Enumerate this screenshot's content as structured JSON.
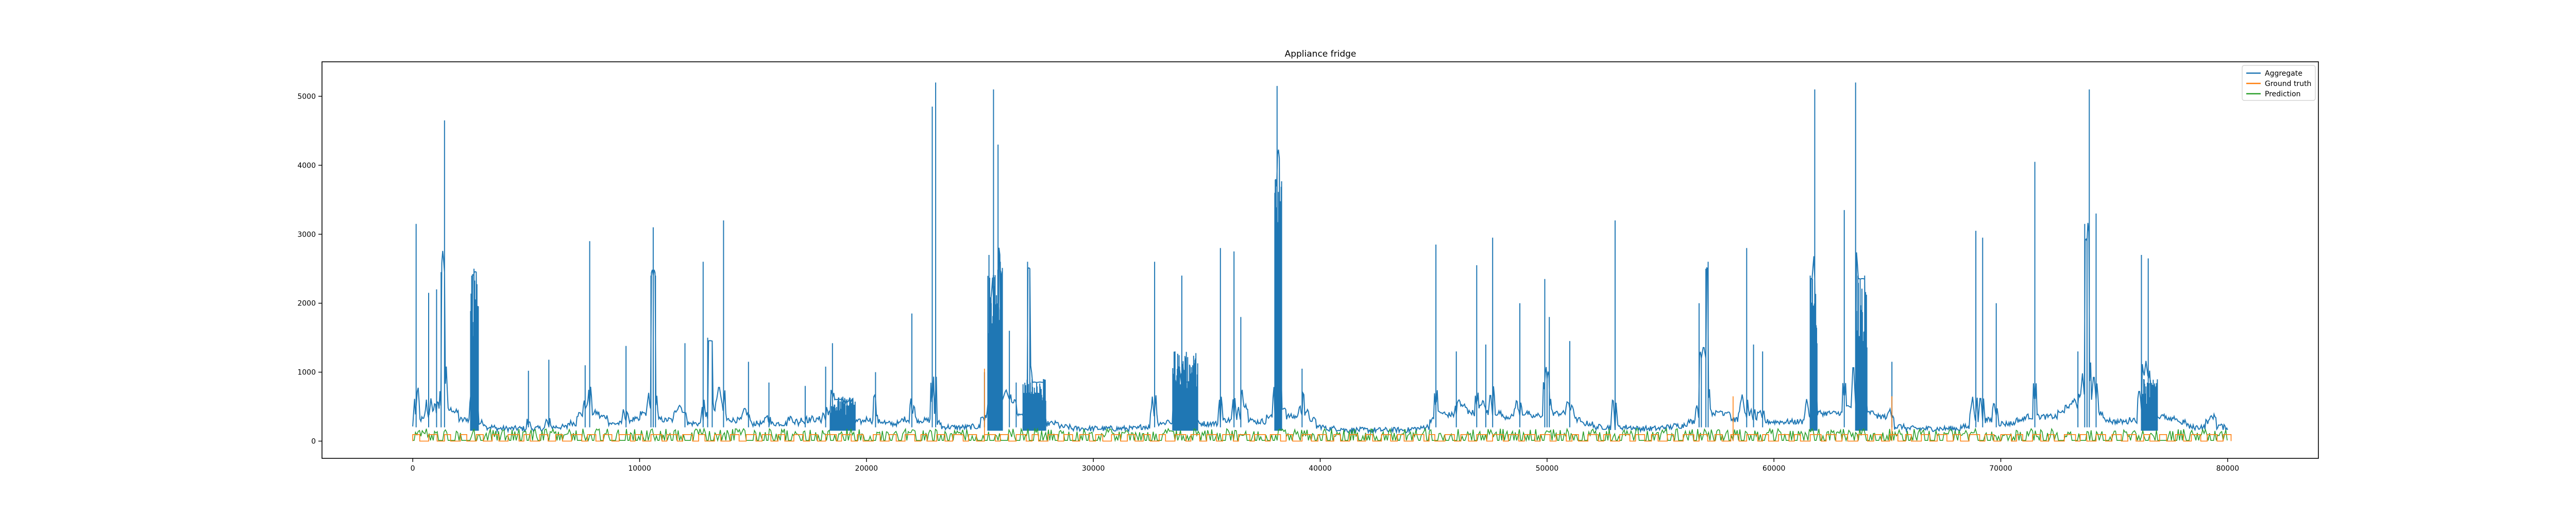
{
  "chart_data": {
    "type": "line",
    "title": "Appliance fridge",
    "xlabel": "",
    "ylabel": "",
    "xlim": [
      -4000,
      84000
    ],
    "ylim": [
      -250,
      5500
    ],
    "xticks": [
      0,
      10000,
      20000,
      30000,
      40000,
      50000,
      60000,
      70000,
      80000
    ],
    "yticks": [
      0,
      1000,
      2000,
      3000,
      4000,
      5000
    ],
    "grid": false,
    "legend_position": "top-right",
    "series": [
      {
        "name": "Aggregate",
        "color": "#1f77b4",
        "baseline": 180,
        "points": [
          [
            0,
            200
          ],
          [
            150,
            3150
          ],
          [
            300,
            450
          ],
          [
            500,
            300
          ],
          [
            700,
            2150
          ],
          [
            900,
            350
          ],
          [
            1050,
            2200
          ],
          [
            1150,
            420
          ],
          [
            1250,
            2450
          ],
          [
            1400,
            4650
          ],
          [
            1550,
            500
          ],
          [
            1800,
            450
          ],
          [
            2000,
            420
          ],
          [
            2200,
            300
          ],
          [
            2500,
            450
          ],
          [
            2600,
            2400
          ],
          [
            2700,
            2500
          ],
          [
            2800,
            2450
          ],
          [
            2900,
            400
          ],
          [
            3200,
            250
          ],
          [
            3600,
            200
          ],
          [
            4200,
            180
          ],
          [
            5000,
            200
          ],
          [
            5100,
            1020
          ],
          [
            5200,
            200
          ],
          [
            5800,
            180
          ],
          [
            6000,
            1180
          ],
          [
            6100,
            200
          ],
          [
            6800,
            250
          ],
          [
            7200,
            380
          ],
          [
            7500,
            480
          ],
          [
            7600,
            1100
          ],
          [
            7700,
            450
          ],
          [
            7800,
            2900
          ],
          [
            7900,
            500
          ],
          [
            8200,
            400
          ],
          [
            8600,
            350
          ],
          [
            8800,
            250
          ],
          [
            9200,
            300
          ],
          [
            9400,
            1380
          ],
          [
            9500,
            300
          ],
          [
            10000,
            420
          ],
          [
            10300,
            400
          ],
          [
            10500,
            2400
          ],
          [
            10600,
            3100
          ],
          [
            10700,
            2400
          ],
          [
            10800,
            420
          ],
          [
            11100,
            300
          ],
          [
            11500,
            380
          ],
          [
            12000,
            1420
          ],
          [
            12100,
            300
          ],
          [
            12700,
            250
          ],
          [
            12800,
            2600
          ],
          [
            12900,
            300
          ],
          [
            13000,
            1500
          ],
          [
            13200,
            1450
          ],
          [
            13300,
            400
          ],
          [
            13700,
            3200
          ],
          [
            13800,
            400
          ],
          [
            14200,
            300
          ],
          [
            14500,
            350
          ],
          [
            14800,
            1150
          ],
          [
            14900,
            250
          ],
          [
            15500,
            300
          ],
          [
            15700,
            850
          ],
          [
            15800,
            250
          ],
          [
            16500,
            300
          ],
          [
            16800,
            600
          ],
          [
            17000,
            250
          ],
          [
            17300,
            800
          ],
          [
            17400,
            300
          ],
          [
            17800,
            500
          ],
          [
            18000,
            300
          ],
          [
            18200,
            1080
          ],
          [
            18300,
            400
          ],
          [
            18400,
            650
          ],
          [
            18500,
            1420
          ],
          [
            18600,
            600
          ],
          [
            18700,
            650
          ],
          [
            18900,
            600
          ],
          [
            19200,
            580
          ],
          [
            19400,
            600
          ],
          [
            19500,
            300
          ],
          [
            19800,
            280
          ],
          [
            20300,
            620
          ],
          [
            20400,
            1000
          ],
          [
            20500,
            300
          ],
          [
            20800,
            280
          ],
          [
            21200,
            250
          ],
          [
            21500,
            300
          ],
          [
            21900,
            450
          ],
          [
            22000,
            1850
          ],
          [
            22200,
            300
          ],
          [
            22800,
            300
          ],
          [
            22900,
            4850
          ],
          [
            23000,
            400
          ],
          [
            23050,
            5200
          ],
          [
            23100,
            350
          ],
          [
            23300,
            250
          ],
          [
            23800,
            200
          ],
          [
            24500,
            200
          ],
          [
            25000,
            280
          ],
          [
            25200,
            1000
          ],
          [
            25300,
            300
          ],
          [
            25400,
            2700
          ],
          [
            25500,
            2000
          ],
          [
            25600,
            5100
          ],
          [
            25700,
            500
          ],
          [
            25800,
            4300
          ],
          [
            25900,
            2600
          ],
          [
            26000,
            600
          ],
          [
            26300,
            1600
          ],
          [
            26400,
            550
          ],
          [
            26600,
            850
          ],
          [
            26800,
            350
          ],
          [
            26900,
            400
          ],
          [
            27100,
            2600
          ],
          [
            27200,
            2500
          ],
          [
            27300,
            900
          ],
          [
            27500,
            850
          ],
          [
            27800,
            900
          ],
          [
            27900,
            300
          ],
          [
            28500,
            250
          ],
          [
            29000,
            200
          ],
          [
            29800,
            180
          ],
          [
            30500,
            200
          ],
          [
            31000,
            180
          ],
          [
            32000,
            200
          ],
          [
            32500,
            300
          ],
          [
            32700,
            2600
          ],
          [
            32800,
            400
          ],
          [
            33100,
            250
          ],
          [
            33500,
            600
          ],
          [
            33600,
            1300
          ],
          [
            33700,
            800
          ],
          [
            33900,
            2400
          ],
          [
            34000,
            900
          ],
          [
            34300,
            850
          ],
          [
            34500,
            850
          ],
          [
            34600,
            300
          ],
          [
            35000,
            250
          ],
          [
            35500,
            300
          ],
          [
            35600,
            2800
          ],
          [
            35700,
            350
          ],
          [
            36100,
            300
          ],
          [
            36200,
            2750
          ],
          [
            36300,
            300
          ],
          [
            36500,
            1800
          ],
          [
            36600,
            600
          ],
          [
            36800,
            500
          ],
          [
            37000,
            300
          ],
          [
            37300,
            280
          ],
          [
            37600,
            350
          ],
          [
            37900,
            400
          ],
          [
            38000,
            3600
          ],
          [
            38100,
            5150
          ],
          [
            38200,
            4100
          ],
          [
            38300,
            800
          ],
          [
            38500,
            450
          ],
          [
            38800,
            350
          ],
          [
            39000,
            400
          ],
          [
            39200,
            1050
          ],
          [
            39300,
            650
          ],
          [
            39500,
            400
          ],
          [
            39800,
            300
          ],
          [
            40200,
            200
          ],
          [
            41000,
            180
          ],
          [
            42000,
            160
          ],
          [
            43000,
            160
          ],
          [
            44000,
            180
          ],
          [
            44500,
            200
          ],
          [
            44800,
            300
          ],
          [
            45000,
            400
          ],
          [
            45100,
            2850
          ],
          [
            45200,
            450
          ],
          [
            45500,
            400
          ],
          [
            45900,
            380
          ],
          [
            46000,
            1300
          ],
          [
            46200,
            500
          ],
          [
            46500,
            600
          ],
          [
            46800,
            400
          ],
          [
            46900,
            2550
          ],
          [
            47000,
            450
          ],
          [
            47300,
            1400
          ],
          [
            47400,
            350
          ],
          [
            47600,
            2950
          ],
          [
            47700,
            500
          ],
          [
            48000,
            400
          ],
          [
            48500,
            350
          ],
          [
            48800,
            2000
          ],
          [
            48900,
            400
          ],
          [
            49200,
            400
          ],
          [
            49500,
            350
          ],
          [
            49800,
            650
          ],
          [
            49900,
            2350
          ],
          [
            50000,
            900
          ],
          [
            50100,
            1800
          ],
          [
            50200,
            450
          ],
          [
            50500,
            400
          ],
          [
            50800,
            450
          ],
          [
            51000,
            1450
          ],
          [
            51200,
            400
          ],
          [
            51500,
            300
          ],
          [
            52000,
            250
          ],
          [
            52800,
            200
          ],
          [
            53000,
            3200
          ],
          [
            53100,
            220
          ],
          [
            53800,
            200
          ],
          [
            54500,
            180
          ],
          [
            55000,
            200
          ],
          [
            55500,
            220
          ],
          [
            56000,
            250
          ],
          [
            56200,
            280
          ],
          [
            56500,
            300
          ],
          [
            56700,
            2000
          ],
          [
            56800,
            1200
          ],
          [
            57000,
            2500
          ],
          [
            57100,
            2600
          ],
          [
            57200,
            500
          ],
          [
            57500,
            400
          ],
          [
            57800,
            700
          ],
          [
            58100,
            400
          ],
          [
            58400,
            300
          ],
          [
            58800,
            2800
          ],
          [
            58900,
            300
          ],
          [
            59100,
            1400
          ],
          [
            59200,
            300
          ],
          [
            59500,
            1300
          ],
          [
            59600,
            300
          ],
          [
            60000,
            280
          ],
          [
            60500,
            280
          ],
          [
            61000,
            280
          ],
          [
            61300,
            300
          ],
          [
            61600,
            2400
          ],
          [
            61700,
            2350
          ],
          [
            61800,
            5100
          ],
          [
            61900,
            500
          ],
          [
            62200,
            400
          ],
          [
            62600,
            450
          ],
          [
            62800,
            400
          ],
          [
            63000,
            500
          ],
          [
            63100,
            3350
          ],
          [
            63200,
            500
          ],
          [
            63400,
            500
          ],
          [
            63600,
            5200
          ],
          [
            63700,
            2400
          ],
          [
            63800,
            2350
          ],
          [
            64000,
            2400
          ],
          [
            64100,
            500
          ],
          [
            64500,
            400
          ],
          [
            65000,
            350
          ],
          [
            65200,
            1150
          ],
          [
            65300,
            300
          ],
          [
            65800,
            200
          ],
          [
            66500,
            180
          ],
          [
            67500,
            180
          ],
          [
            68200,
            200
          ],
          [
            68600,
            250
          ],
          [
            68900,
            3050
          ],
          [
            69000,
            300
          ],
          [
            69200,
            2950
          ],
          [
            69300,
            300
          ],
          [
            69600,
            350
          ],
          [
            69800,
            2000
          ],
          [
            69900,
            300
          ],
          [
            70200,
            250
          ],
          [
            70600,
            300
          ],
          [
            71000,
            350
          ],
          [
            71400,
            400
          ],
          [
            71500,
            4050
          ],
          [
            71600,
            400
          ],
          [
            72000,
            350
          ],
          [
            72500,
            400
          ],
          [
            72800,
            600
          ],
          [
            73100,
            500
          ],
          [
            73400,
            1300
          ],
          [
            73500,
            600
          ],
          [
            73700,
            3150
          ],
          [
            73800,
            2900
          ],
          [
            73900,
            5100
          ],
          [
            74000,
            600
          ],
          [
            74200,
            3300
          ],
          [
            74300,
            500
          ],
          [
            74500,
            400
          ],
          [
            74900,
            300
          ],
          [
            75200,
            280
          ],
          [
            75600,
            300
          ],
          [
            76000,
            450
          ],
          [
            76200,
            2700
          ],
          [
            76300,
            900
          ],
          [
            76500,
            2650
          ],
          [
            76600,
            800
          ],
          [
            76900,
            400
          ],
          [
            77300,
            350
          ],
          [
            77600,
            300
          ],
          [
            77800,
            650
          ],
          [
            77900,
            250
          ],
          [
            78200,
            500
          ],
          [
            78300,
            200
          ],
          [
            78700,
            200
          ],
          [
            79000,
            280
          ],
          [
            79200,
            350
          ],
          [
            79500,
            400
          ],
          [
            79800,
            200
          ],
          [
            80000,
            200
          ]
        ]
      },
      {
        "name": "Ground truth",
        "color": "#ff7f0e",
        "spikes": [
          [
            25200,
            1050
          ],
          [
            58200,
            650
          ],
          [
            65200,
            650
          ]
        ]
      },
      {
        "name": "Prediction",
        "color": "#2ca02c",
        "level_range": [
          0,
          180
        ]
      }
    ]
  }
}
